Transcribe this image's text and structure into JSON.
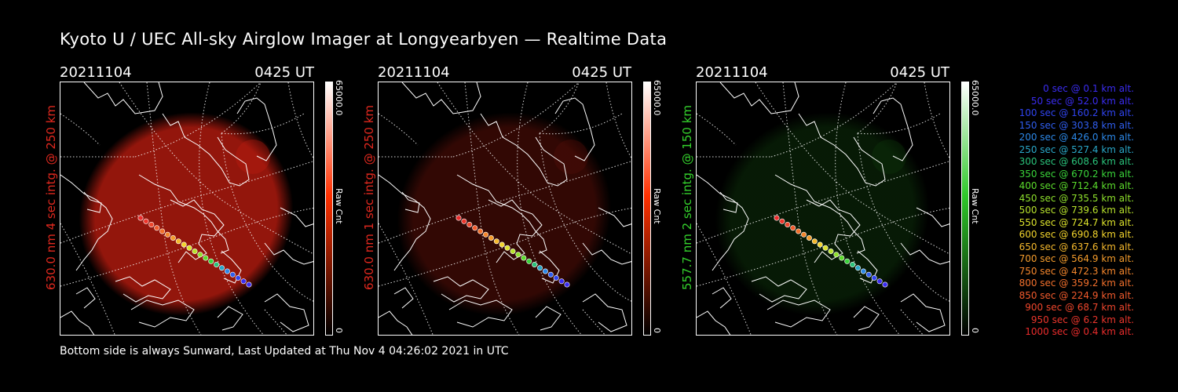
{
  "title": "Kyoto U / UEC All-sky Airglow Imager at Longyearbyen — Realtime Data",
  "footer": "Bottom side is always Sunward, Last Updated at Thu Nov  4 04:26:02 2021 in UTC",
  "panels": [
    {
      "date": "20211104",
      "time": "0425 UT",
      "ylabel": "630.0 nm 4 sec intg. @ 250 km",
      "label_color": "#e0281e",
      "cbar_max": "65000.0",
      "cbar_min": "0",
      "cbar_unit": "Raw Cnt",
      "cbar_color": "#ff3000",
      "glow": "#c41d10",
      "glow_opacity": 0.75
    },
    {
      "date": "20211104",
      "time": "0425 UT",
      "ylabel": "630.0 nm 1 sec intg. @ 250 km",
      "label_color": "#e0281e",
      "cbar_max": "65000.0",
      "cbar_min": "0",
      "cbar_unit": "Raw Cnt",
      "cbar_color": "#ff3000",
      "glow": "#5a0f08",
      "glow_opacity": 0.55
    },
    {
      "date": "20211104",
      "time": "0425 UT",
      "ylabel": "557.7 nm 2 sec intg. @ 150 km",
      "label_color": "#34d12c",
      "cbar_max": "65000.0",
      "cbar_min": "0",
      "cbar_unit": "Raw Cnt",
      "cbar_color": "#2fc82a",
      "glow": "#0f3a0c",
      "glow_opacity": 0.45
    }
  ],
  "legend": [
    {
      "text": "0 sec @    0.1 km alt.",
      "color": "#3a2cf0"
    },
    {
      "text": "50 sec @   52.0 km alt.",
      "color": "#3a2cf0"
    },
    {
      "text": "100 sec @  160.2 km alt.",
      "color": "#3044f0"
    },
    {
      "text": "150 sec @  303.8 km alt.",
      "color": "#2f5ef0"
    },
    {
      "text": "200 sec @  426.0 km alt.",
      "color": "#2c88e8"
    },
    {
      "text": "250 sec @  527.4 km alt.",
      "color": "#2aa7c8"
    },
    {
      "text": "300 sec @  608.6 km alt.",
      "color": "#2ac27a"
    },
    {
      "text": "350 sec @  670.2 km alt.",
      "color": "#3ad43a"
    },
    {
      "text": "400 sec @  712.4 km alt.",
      "color": "#5cdc2c"
    },
    {
      "text": "450 sec @  735.5 km alt.",
      "color": "#8ee02c"
    },
    {
      "text": "500 sec @  739.6 km alt.",
      "color": "#b8e22c"
    },
    {
      "text": "550 sec @  724.7 km alt.",
      "color": "#dce22c"
    },
    {
      "text": "600 sec @  690.8 km alt.",
      "color": "#f2d42c"
    },
    {
      "text": "650 sec @  637.6 km alt.",
      "color": "#f4b82c"
    },
    {
      "text": "700 sec @  564.9 km alt.",
      "color": "#f49c2c"
    },
    {
      "text": "750 sec @  472.3 km alt.",
      "color": "#f4862c"
    },
    {
      "text": "800 sec @  359.2 km alt.",
      "color": "#f2702c"
    },
    {
      "text": "850 sec @  224.9 km alt.",
      "color": "#f05a2c"
    },
    {
      "text": "900 sec @   68.7 km alt.",
      "color": "#ee462c"
    },
    {
      "text": "950 sec @    6.2 km alt.",
      "color": "#ec362c"
    },
    {
      "text": "1000 sec @    0.4 km alt.",
      "color": "#ea2c2c"
    }
  ]
}
